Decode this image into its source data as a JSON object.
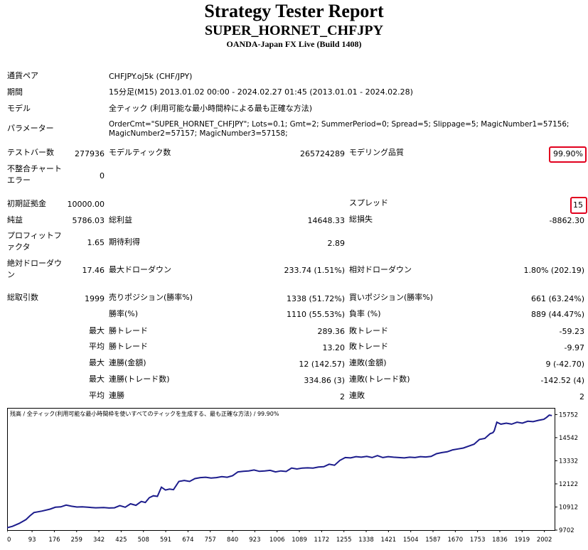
{
  "header": {
    "title": "Strategy Tester Report",
    "ea_name": "SUPER_HORNET_CHFJPY",
    "broker": "OANDA-Japan FX Live (Build 1408)"
  },
  "info": {
    "pair_label": "通貨ペア",
    "pair_value": "CHFJPY.oj5k (CHF/JPY)",
    "period_label": "期間",
    "period_value": "15分足(M15) 2013.01.02 00:00 - 2024.02.27 01:45 (2013.01.01 - 2024.02.28)",
    "model_label": "モデル",
    "model_value": "全ティック (利用可能な最小時間枠による最も正確な方法)",
    "params_label": "パラメーター",
    "params_line1": "OrderCmt=\"SUPER_HORNET_CHFJPY\"; Lots=0.1; Gmt=2; SummerPeriod=0; Spread=5; Slippage=5; MagicNumber1=57156;",
    "params_line2": "MagicNumber2=57157; MagicNumber3=57158;"
  },
  "stats": {
    "bars_label": "テストバー数",
    "bars_value": "277936",
    "ticks_label": "モデルティック数",
    "ticks_value": "265724289",
    "quality_label": "モデリング品質",
    "quality_value": "99.90%",
    "mismatch_label1": "不整合チャート",
    "mismatch_label2": "エラー",
    "mismatch_value": "0",
    "deposit_label": "初期証拠金",
    "deposit_value": "10000.00",
    "spread_label": "スプレッド",
    "spread_value": "15",
    "net_label": "純益",
    "net_value": "5786.03",
    "gross_profit_label": "総利益",
    "gross_profit_value": "14648.33",
    "gross_loss_label": "総損失",
    "gross_loss_value": "-8862.30",
    "pf_label1": "プロフィットフ",
    "pf_label2": "ァクタ",
    "pf_value": "1.65",
    "payoff_label": "期待利得",
    "payoff_value": "2.89",
    "abs_dd_label1": "絶対ドローダウ",
    "abs_dd_label2": "ン",
    "abs_dd_value": "17.46",
    "max_dd_label": "最大ドローダウン",
    "max_dd_value": "233.74 (1.51%)",
    "rel_dd_label": "相対ドローダウン",
    "rel_dd_value": "1.80% (202.19)",
    "total_label": "総取引数",
    "total_value": "1999",
    "short_label": "売りポジション(勝率%)",
    "short_value": "1338 (51.72%)",
    "long_label": "買いポジション(勝率%)",
    "long_value": "661 (63.24%)",
    "win_label": "勝率(%)",
    "win_value": "1110 (55.53%)",
    "loss_label": "負率 (%)",
    "loss_value": "889 (44.47%)",
    "max1": "最大",
    "lw_trade_label": "勝トレード",
    "lw_trade_value": "289.36",
    "ll_trade_label": "敗トレード",
    "ll_trade_value": "-59.23",
    "avg1": "平均",
    "aw_trade_label": "勝トレード",
    "aw_trade_value": "13.20",
    "al_trade_label": "敗トレード",
    "al_trade_value": "-9.97",
    "max2": "最大",
    "cw_money_label": "連勝(金額)",
    "cw_money_value": "12 (142.57)",
    "cl_money_label": "連敗(金額)",
    "cl_money_value": "9 (-42.70)",
    "max3": "最大",
    "cw_trades_label": "連勝(トレード数)",
    "cw_trades_value": "334.86 (3)",
    "cl_trades_label": "連敗(トレード数)",
    "cl_trades_value": "-142.52 (4)",
    "avg2": "平均",
    "aw_cons_label": "連勝",
    "aw_cons_value": "2",
    "al_cons_label": "連敗",
    "al_cons_value": "2"
  },
  "chart_data": {
    "type": "line",
    "title": "残高 / 全ティック(利用可能な最小時間枠を使いすべてのティックを生成する、最も正確な方法) / 99.90%",
    "x_ticks": [
      0,
      93,
      176,
      259,
      342,
      425,
      508,
      591,
      674,
      757,
      840,
      923,
      1006,
      1089,
      1172,
      1255,
      1338,
      1421,
      1504,
      1587,
      1670,
      1753,
      1836,
      1919,
      2002
    ],
    "y_ticks": [
      9702,
      10912,
      12122,
      13332,
      14542,
      15752
    ],
    "xlim": [
      0,
      2040
    ],
    "ylim": [
      9702,
      16100
    ],
    "series": [
      {
        "color": "#1c1c8c",
        "x": [
          0,
          20,
          45,
          70,
          85,
          100,
          130,
          160,
          180,
          200,
          220,
          240,
          260,
          280,
          300,
          330,
          360,
          380,
          400,
          420,
          440,
          460,
          480,
          500,
          515,
          530,
          545,
          560,
          575,
          590,
          605,
          620,
          640,
          660,
          680,
          700,
          720,
          740,
          760,
          780,
          800,
          820,
          840,
          860,
          880,
          900,
          920,
          940,
          960,
          980,
          1000,
          1020,
          1040,
          1060,
          1080,
          1100,
          1120,
          1140,
          1160,
          1180,
          1200,
          1220,
          1240,
          1260,
          1280,
          1300,
          1320,
          1340,
          1360,
          1380,
          1400,
          1420,
          1440,
          1460,
          1480,
          1500,
          1520,
          1540,
          1560,
          1580,
          1600,
          1620,
          1640,
          1660,
          1680,
          1700,
          1720,
          1740,
          1760,
          1780,
          1800,
          1810,
          1815,
          1825,
          1840,
          1860,
          1880,
          1900,
          1920,
          1940,
          1960,
          1980,
          2000,
          2010,
          2020,
          2030
        ],
        "y": [
          9830,
          9900,
          10050,
          10250,
          10450,
          10620,
          10700,
          10800,
          10900,
          10920,
          11010,
          10950,
          10910,
          10920,
          10900,
          10870,
          10880,
          10860,
          10870,
          10980,
          10900,
          11080,
          11000,
          11200,
          11150,
          11400,
          11500,
          11470,
          11950,
          11800,
          11850,
          11820,
          12250,
          12300,
          12250,
          12400,
          12450,
          12470,
          12430,
          12450,
          12500,
          12470,
          12550,
          12750,
          12780,
          12800,
          12850,
          12780,
          12800,
          12830,
          12750,
          12800,
          12770,
          12950,
          12900,
          12950,
          12960,
          12950,
          13000,
          13020,
          13150,
          13100,
          13350,
          13500,
          13480,
          13550,
          13520,
          13560,
          13500,
          13600,
          13500,
          13550,
          13520,
          13500,
          13480,
          13520,
          13500,
          13550,
          13530,
          13560,
          13700,
          13760,
          13800,
          13900,
          13950,
          14000,
          14100,
          14200,
          14450,
          14500,
          14750,
          14800,
          14900,
          15350,
          15250,
          15300,
          15250,
          15350,
          15300,
          15400,
          15380,
          15450,
          15500,
          15600,
          15720,
          15700
        ]
      }
    ]
  }
}
